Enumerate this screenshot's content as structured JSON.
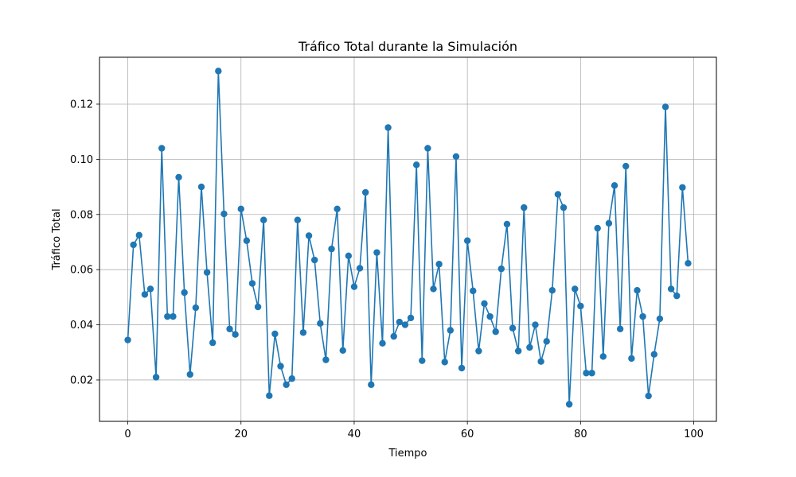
{
  "chart_data": {
    "type": "line",
    "title": "Tráfico Total durante la Simulación",
    "xlabel": "Tiempo",
    "ylabel": "Tráfico Total",
    "xlim": [
      -5,
      104
    ],
    "ylim": [
      0.005,
      0.137
    ],
    "xticks": [
      0,
      20,
      40,
      60,
      80,
      100
    ],
    "xtick_labels": [
      "0",
      "20",
      "40",
      "60",
      "80",
      "100"
    ],
    "yticks": [
      0.02,
      0.04,
      0.06,
      0.08,
      0.1,
      0.12
    ],
    "ytick_labels": [
      "0.02",
      "0.04",
      "0.06",
      "0.08",
      "0.10",
      "0.12"
    ],
    "grid": true,
    "color": "#1f77b4",
    "marker": "circle",
    "series": [
      {
        "x": [
          0,
          1,
          2,
          3,
          4,
          5,
          6,
          7,
          8,
          9,
          10,
          11,
          12,
          13,
          14,
          15,
          16,
          17,
          18,
          19,
          20,
          21,
          22,
          23,
          24,
          25,
          26,
          27,
          28,
          29,
          30,
          31,
          32,
          33,
          34,
          35,
          36,
          37,
          38,
          39,
          40,
          41,
          42,
          43,
          44,
          45,
          46,
          47,
          48,
          49,
          50,
          51,
          52,
          53,
          54,
          55,
          56,
          57,
          58,
          59,
          60,
          61,
          62,
          63,
          64,
          65,
          66,
          67,
          68,
          69,
          70,
          71,
          72,
          73,
          74,
          75,
          76,
          77,
          78,
          79,
          80,
          81,
          82,
          83,
          84,
          85,
          86,
          87,
          88,
          89,
          90,
          91,
          92,
          93,
          94,
          95,
          96,
          97,
          98,
          99
        ],
        "values": [
          0.0345,
          0.069,
          0.0725,
          0.051,
          0.053,
          0.021,
          0.104,
          0.043,
          0.043,
          0.0935,
          0.0517,
          0.022,
          0.0462,
          0.09,
          0.059,
          0.0335,
          0.132,
          0.0802,
          0.0385,
          0.0365,
          0.082,
          0.0705,
          0.055,
          0.0465,
          0.078,
          0.0143,
          0.0367,
          0.025,
          0.0183,
          0.0205,
          0.078,
          0.0372,
          0.0723,
          0.0635,
          0.0405,
          0.0273,
          0.0675,
          0.082,
          0.0307,
          0.065,
          0.0538,
          0.0605,
          0.088,
          0.0183,
          0.0662,
          0.0333,
          0.1115,
          0.0358,
          0.041,
          0.04,
          0.0425,
          0.098,
          0.027,
          0.104,
          0.053,
          0.062,
          0.0265,
          0.038,
          0.101,
          0.0243,
          0.0705,
          0.0523,
          0.0305,
          0.0477,
          0.043,
          0.0375,
          0.0603,
          0.0765,
          0.0388,
          0.0305,
          0.0825,
          0.0318,
          0.04,
          0.0267,
          0.034,
          0.0525,
          0.0873,
          0.0825,
          0.0112,
          0.053,
          0.0468,
          0.0225,
          0.0225,
          0.075,
          0.0285,
          0.0768,
          0.0905,
          0.0385,
          0.0975,
          0.0278,
          0.0525,
          0.043,
          0.0142,
          0.0293,
          0.0422,
          0.119,
          0.053,
          0.0505,
          0.0898,
          0.0623
        ]
      }
    ]
  }
}
